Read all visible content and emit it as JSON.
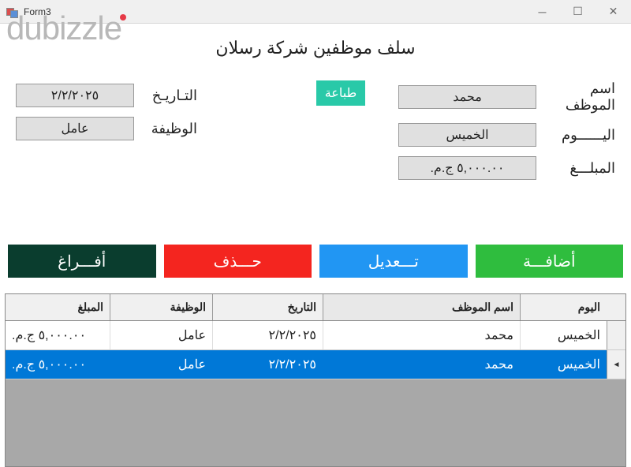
{
  "window": {
    "title": "Form3"
  },
  "watermark": "dubizzle",
  "form": {
    "title": "سلف موظفين شركة رسلان",
    "labels": {
      "employee": "اسم الموظف",
      "day": "اليــــــوم",
      "amount": "المبلـــغ",
      "date": "التـاريـخ",
      "job": "الوظيفة"
    },
    "values": {
      "employee": "محمد",
      "day": "الخميس",
      "amount": "٥,٠٠٠.٠٠ ج.م.",
      "date": "٢/٢/٢٠٢٥",
      "job": "عامل"
    },
    "print": "طباعة"
  },
  "buttons": {
    "add": "أضافـــة",
    "edit": "تـــعديل",
    "delete": "حـــذف",
    "clear": "أفـــراغ"
  },
  "grid": {
    "headers": {
      "day": "اليوم",
      "name": "اسم الموظف",
      "date": "التاريخ",
      "job": "الوظيفة",
      "amount": "المبلغ"
    },
    "rows": [
      {
        "day": "الخميس",
        "name": "محمد",
        "date": "٢/٢/٢٠٢٥",
        "job": "عامل",
        "amount": "٥,٠٠٠.٠٠ ج.م.",
        "selected": false
      },
      {
        "day": "الخميس",
        "name": "محمد",
        "date": "٢/٢/٢٠٢٥",
        "job": "عامل",
        "amount": "٥,٠٠٠.٠٠ ج.م.",
        "selected": true
      }
    ]
  },
  "colors": {
    "add": "#2fbd3e",
    "edit": "#2196f3",
    "delete": "#f4251f",
    "clear": "#0a3d2e",
    "print": "#29c9a8",
    "selected": "#0078d7"
  }
}
